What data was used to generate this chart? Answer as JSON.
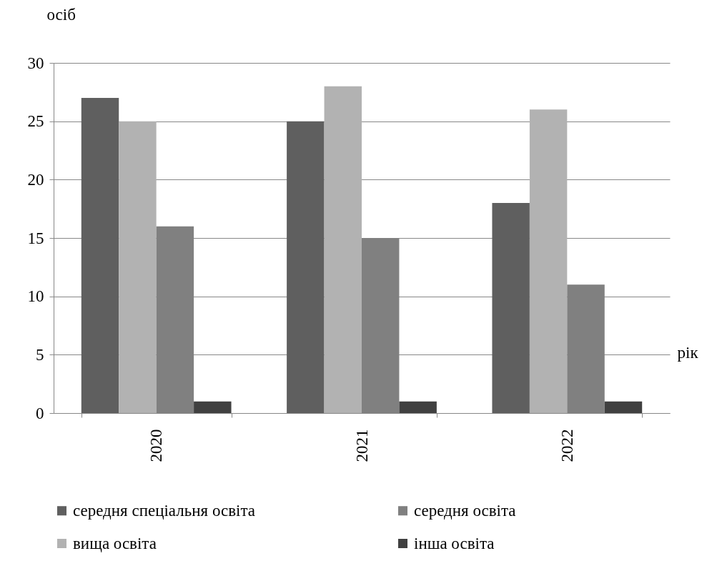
{
  "chart_data": {
    "type": "bar",
    "xlabel": "рік",
    "ylabel": "осіб",
    "categories": [
      "2020",
      "2021",
      "2022"
    ],
    "series": [
      {
        "name": "середня спеціальня освіта",
        "color": "#5f5f5f",
        "values": [
          27,
          25,
          18
        ]
      },
      {
        "name": "вища освіта",
        "color": "#b2b2b2",
        "values": [
          25,
          28,
          26
        ]
      },
      {
        "name": "середня освіта",
        "color": "#808080",
        "values": [
          16,
          15,
          11
        ]
      },
      {
        "name": "інша освіта",
        "color": "#404040",
        "values": [
          1,
          1,
          1
        ]
      }
    ],
    "ylim": [
      0,
      30
    ],
    "yticks": [
      0,
      5,
      10,
      15,
      20,
      25,
      30
    ],
    "grid": "y",
    "legend": "bottom"
  }
}
